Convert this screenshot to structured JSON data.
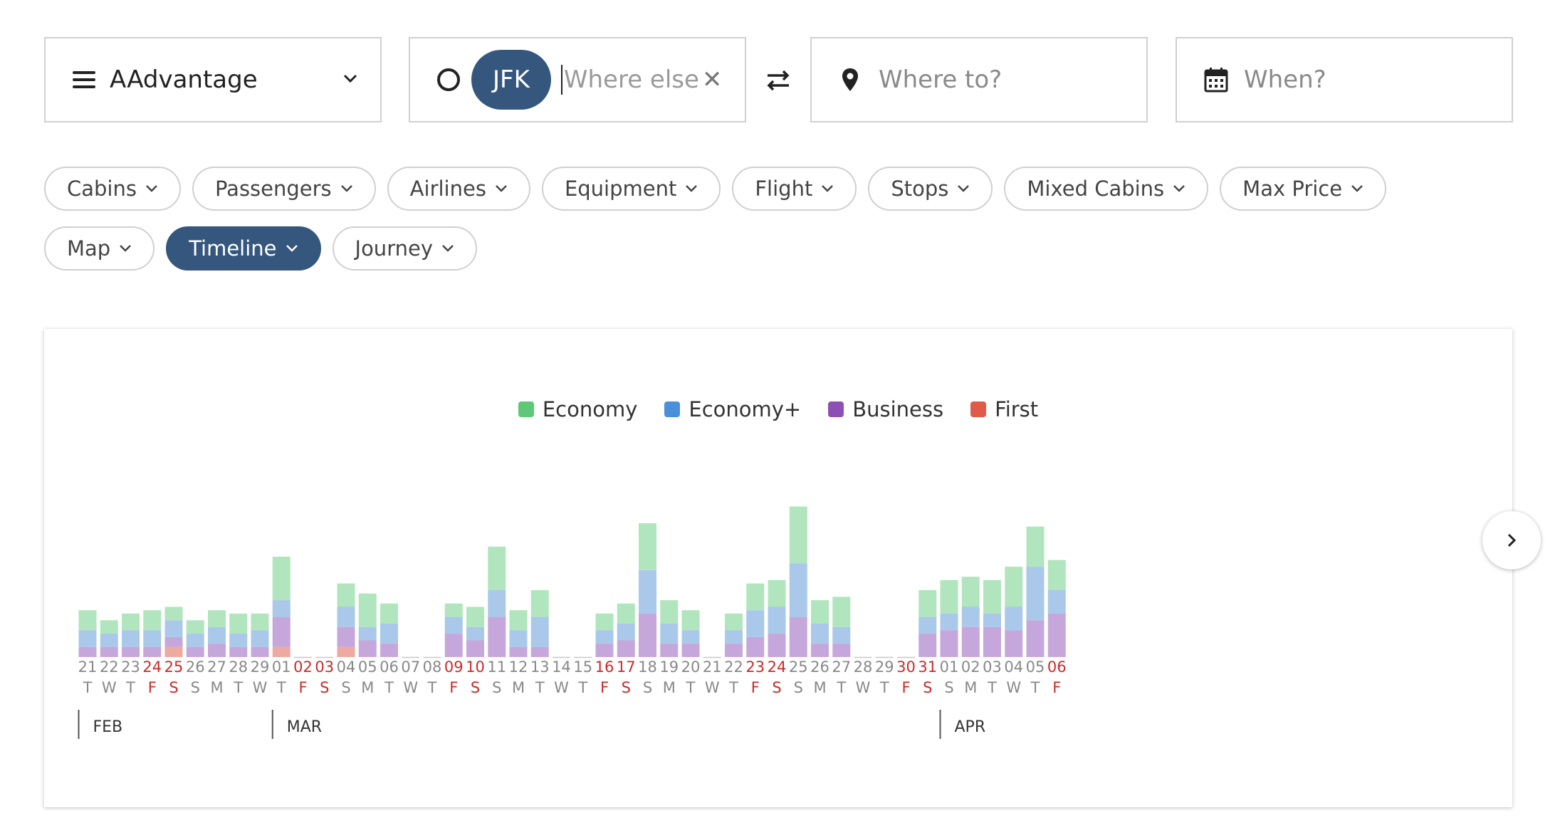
{
  "search": {
    "program": "AAdvantage",
    "origin_code": "JFK",
    "origin_placeholder": "Where else?",
    "destination_placeholder": "Where to?",
    "date_placeholder": "When?"
  },
  "filters": {
    "row1": [
      "Cabins",
      "Passengers",
      "Airlines",
      "Equipment",
      "Flight",
      "Stops",
      "Mixed Cabins",
      "Max Price"
    ],
    "row2": [
      "Map",
      "Timeline",
      "Journey"
    ],
    "active": "Timeline"
  },
  "colors": {
    "accent": "#35577e",
    "weekend": "#cc2a2a",
    "economy": "#5cc878",
    "economy_plus": "#4a90d9",
    "business": "#8e4fb5",
    "first": "#e05a4a"
  },
  "chart_data": {
    "type": "bar",
    "stacked": true,
    "legend": [
      "Economy",
      "Economy+",
      "Business",
      "First"
    ],
    "months": [
      {
        "label": "FEB",
        "start_index": 0
      },
      {
        "label": "MAR",
        "start_index": 9
      },
      {
        "label": "APR",
        "start_index": 40
      }
    ],
    "days": [
      {
        "d": "21",
        "w": "T",
        "we": false,
        "v": [
          6,
          5,
          3,
          0
        ]
      },
      {
        "d": "22",
        "w": "W",
        "we": false,
        "v": [
          4,
          4,
          3,
          0
        ]
      },
      {
        "d": "23",
        "w": "T",
        "we": false,
        "v": [
          5,
          5,
          3,
          0
        ]
      },
      {
        "d": "24",
        "w": "F",
        "we": true,
        "v": [
          6,
          5,
          3,
          0
        ]
      },
      {
        "d": "25",
        "w": "S",
        "we": true,
        "v": [
          4,
          5,
          3,
          3
        ]
      },
      {
        "d": "26",
        "w": "S",
        "we": false,
        "v": [
          4,
          4,
          3,
          0
        ]
      },
      {
        "d": "27",
        "w": "M",
        "we": false,
        "v": [
          5,
          5,
          4,
          0
        ]
      },
      {
        "d": "28",
        "w": "T",
        "we": false,
        "v": [
          6,
          4,
          3,
          0
        ]
      },
      {
        "d": "29",
        "w": "W",
        "we": false,
        "v": [
          5,
          5,
          3,
          0
        ]
      },
      {
        "d": "01",
        "w": "T",
        "we": false,
        "v": [
          13,
          5,
          9,
          3
        ]
      },
      {
        "d": "02",
        "w": "F",
        "we": true,
        "v": [
          0,
          0,
          0,
          0
        ]
      },
      {
        "d": "03",
        "w": "S",
        "we": true,
        "v": [
          0,
          0,
          0,
          0
        ]
      },
      {
        "d": "04",
        "w": "S",
        "we": false,
        "v": [
          7,
          6,
          6,
          3
        ]
      },
      {
        "d": "05",
        "w": "M",
        "we": false,
        "v": [
          10,
          4,
          5,
          0
        ]
      },
      {
        "d": "06",
        "w": "T",
        "we": false,
        "v": [
          6,
          6,
          4,
          0
        ]
      },
      {
        "d": "07",
        "w": "W",
        "we": false,
        "v": [
          0,
          0,
          0,
          0
        ]
      },
      {
        "d": "08",
        "w": "T",
        "we": false,
        "v": [
          0,
          0,
          0,
          0
        ]
      },
      {
        "d": "09",
        "w": "F",
        "we": true,
        "v": [
          4,
          5,
          7,
          0
        ]
      },
      {
        "d": "10",
        "w": "S",
        "we": true,
        "v": [
          6,
          4,
          5,
          0
        ]
      },
      {
        "d": "11",
        "w": "S",
        "we": false,
        "v": [
          13,
          8,
          12,
          0
        ]
      },
      {
        "d": "12",
        "w": "M",
        "we": false,
        "v": [
          6,
          5,
          3,
          0
        ]
      },
      {
        "d": "13",
        "w": "T",
        "we": false,
        "v": [
          8,
          9,
          3,
          0
        ]
      },
      {
        "d": "14",
        "w": "W",
        "we": false,
        "v": [
          0,
          0,
          0,
          0
        ]
      },
      {
        "d": "15",
        "w": "T",
        "we": false,
        "v": [
          0,
          0,
          0,
          0
        ]
      },
      {
        "d": "16",
        "w": "F",
        "we": true,
        "v": [
          5,
          4,
          4,
          0
        ]
      },
      {
        "d": "17",
        "w": "S",
        "we": true,
        "v": [
          6,
          5,
          5,
          0
        ]
      },
      {
        "d": "18",
        "w": "S",
        "we": false,
        "v": [
          14,
          13,
          13,
          0
        ]
      },
      {
        "d": "19",
        "w": "M",
        "we": false,
        "v": [
          7,
          6,
          4,
          0
        ]
      },
      {
        "d": "20",
        "w": "T",
        "we": false,
        "v": [
          6,
          4,
          4,
          0
        ]
      },
      {
        "d": "21",
        "w": "W",
        "we": false,
        "v": [
          0,
          0,
          0,
          0
        ]
      },
      {
        "d": "22",
        "w": "T",
        "we": false,
        "v": [
          5,
          4,
          4,
          0
        ]
      },
      {
        "d": "23",
        "w": "F",
        "we": true,
        "v": [
          8,
          8,
          6,
          0
        ]
      },
      {
        "d": "24",
        "w": "S",
        "we": true,
        "v": [
          8,
          8,
          7,
          0
        ]
      },
      {
        "d": "25",
        "w": "S",
        "we": false,
        "v": [
          17,
          16,
          12,
          0
        ]
      },
      {
        "d": "26",
        "w": "M",
        "we": false,
        "v": [
          7,
          6,
          4,
          0
        ]
      },
      {
        "d": "27",
        "w": "T",
        "we": false,
        "v": [
          9,
          5,
          4,
          0
        ]
      },
      {
        "d": "28",
        "w": "W",
        "we": false,
        "v": [
          0,
          0,
          0,
          0
        ]
      },
      {
        "d": "29",
        "w": "T",
        "we": false,
        "v": [
          0,
          0,
          0,
          0
        ]
      },
      {
        "d": "30",
        "w": "F",
        "we": true,
        "v": [
          0,
          0,
          0,
          0
        ]
      },
      {
        "d": "31",
        "w": "S",
        "we": true,
        "v": [
          8,
          5,
          7,
          0
        ]
      },
      {
        "d": "01",
        "w": "S",
        "we": false,
        "v": [
          10,
          5,
          8,
          0
        ]
      },
      {
        "d": "02",
        "w": "M",
        "we": false,
        "v": [
          9,
          6,
          9,
          0
        ]
      },
      {
        "d": "03",
        "w": "T",
        "we": false,
        "v": [
          10,
          4,
          9,
          0
        ]
      },
      {
        "d": "04",
        "w": "W",
        "we": false,
        "v": [
          12,
          7,
          8,
          0
        ]
      },
      {
        "d": "05",
        "w": "T",
        "we": false,
        "v": [
          12,
          16,
          11,
          0
        ]
      },
      {
        "d": "06",
        "w": "F",
        "we": true,
        "v": [
          9,
          7,
          13,
          0
        ]
      }
    ]
  }
}
